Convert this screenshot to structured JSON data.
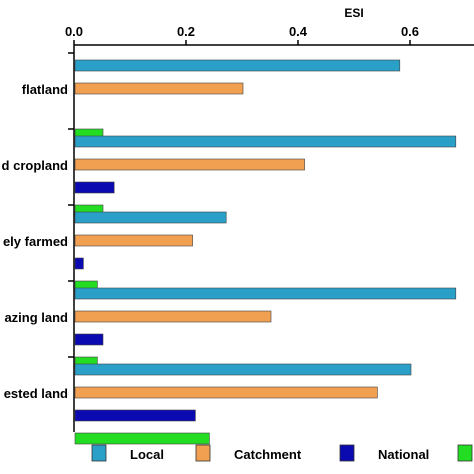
{
  "chart_data": {
    "type": "bar",
    "orientation": "horizontal",
    "title": "",
    "xlabel": "ESI",
    "ylabel": "",
    "xlim": [
      0,
      0.7
    ],
    "xticks": [
      "0.0",
      "0.2",
      "0.4",
      "0.6"
    ],
    "xtick_values": [
      0,
      0.2,
      0.4,
      0.6
    ],
    "categories": [
      "flatland",
      "d cropland",
      "ely farmed",
      "azing land",
      "ested land"
    ],
    "series": [
      {
        "name": "Local",
        "color": "#2aa0c8",
        "values": [
          0.58,
          0.68,
          0.27,
          0.68,
          0.6
        ]
      },
      {
        "name": "Catchment",
        "color": "#f0a050",
        "values": [
          0.3,
          0.41,
          0.21,
          0.35,
          0.54
        ]
      },
      {
        "name": "National",
        "color": "#0a0ab0",
        "values": [
          null,
          0.07,
          0.015,
          0.05,
          0.215
        ]
      },
      {
        "name": "",
        "color": "#22dd22",
        "values": [
          0.05,
          0.05,
          0.04,
          0.04,
          0.24
        ]
      }
    ],
    "legend_position": "bottom",
    "grid": false
  }
}
